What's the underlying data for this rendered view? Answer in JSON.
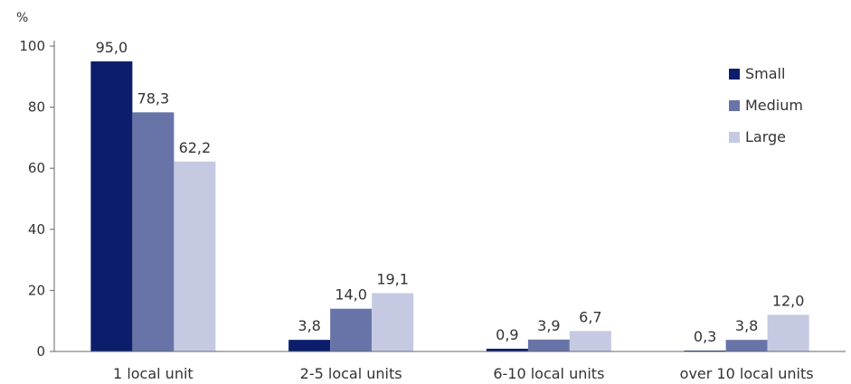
{
  "chart_data": {
    "type": "bar",
    "ylabel": "%",
    "ylim": [
      0,
      100
    ],
    "yticks": [
      "0",
      "20",
      "40",
      "60",
      "80",
      "100"
    ],
    "categories": [
      "1 local unit",
      "2-5 local units",
      "6-10 local units",
      "over 10 local units"
    ],
    "series": [
      {
        "name": "Small",
        "color": "#0b1d6b",
        "values": [
          95.0,
          3.8,
          0.9,
          0.3
        ],
        "labels": [
          "95,0",
          "3,8",
          "0,9",
          "0,3"
        ]
      },
      {
        "name": "Medium",
        "color": "#6874a8",
        "values": [
          78.3,
          14.0,
          3.9,
          3.8
        ],
        "labels": [
          "78,3",
          "14,0",
          "3,9",
          "3,8"
        ]
      },
      {
        "name": "Large",
        "color": "#c5cae2",
        "values": [
          62.2,
          19.1,
          6.7,
          12.0
        ],
        "labels": [
          "62,2",
          "19,1",
          "6,7",
          "12,0"
        ]
      }
    ],
    "legend": {
      "position": "top-right"
    },
    "grid": false
  }
}
